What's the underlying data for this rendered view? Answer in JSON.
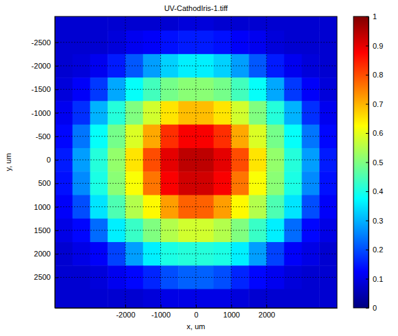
{
  "chart_data": {
    "type": "heatmap",
    "title": "UV-CathodIris-1.tiff",
    "xlabel": "x, um",
    "ylabel": "y, um",
    "x": [
      -3750,
      -3250,
      -2750,
      -2250,
      -1750,
      -1250,
      -750,
      -250,
      250,
      750,
      1250,
      1750,
      2250,
      2750,
      3250,
      3750
    ],
    "y": [
      -3000,
      -2500,
      -2000,
      -1500,
      -1000,
      -500,
      0,
      500,
      1000,
      1500,
      2000,
      2500,
      3000
    ],
    "values": [
      [
        0.08,
        0.08,
        0.08,
        0.08,
        0.08,
        0.08,
        0.08,
        0.09,
        0.09,
        0.08,
        0.08,
        0.08,
        0.08,
        0.08,
        0.08,
        0.08
      ],
      [
        0.08,
        0.08,
        0.08,
        0.09,
        0.11,
        0.12,
        0.14,
        0.15,
        0.15,
        0.14,
        0.12,
        0.11,
        0.09,
        0.08,
        0.08,
        0.08
      ],
      [
        0.08,
        0.09,
        0.11,
        0.15,
        0.21,
        0.28,
        0.33,
        0.36,
        0.36,
        0.33,
        0.28,
        0.21,
        0.15,
        0.11,
        0.09,
        0.08
      ],
      [
        0.09,
        0.12,
        0.18,
        0.29,
        0.38,
        0.44,
        0.49,
        0.51,
        0.51,
        0.49,
        0.44,
        0.38,
        0.29,
        0.18,
        0.12,
        0.09
      ],
      [
        0.11,
        0.17,
        0.3,
        0.41,
        0.5,
        0.58,
        0.65,
        0.69,
        0.69,
        0.65,
        0.58,
        0.5,
        0.41,
        0.3,
        0.17,
        0.11
      ],
      [
        0.13,
        0.24,
        0.38,
        0.49,
        0.59,
        0.71,
        0.83,
        0.88,
        0.88,
        0.83,
        0.71,
        0.59,
        0.49,
        0.38,
        0.24,
        0.13
      ],
      [
        0.15,
        0.28,
        0.41,
        0.52,
        0.65,
        0.8,
        0.9,
        0.94,
        0.94,
        0.9,
        0.8,
        0.65,
        0.52,
        0.41,
        0.28,
        0.15
      ],
      [
        0.14,
        0.26,
        0.4,
        0.51,
        0.62,
        0.76,
        0.88,
        0.92,
        0.92,
        0.88,
        0.76,
        0.62,
        0.51,
        0.4,
        0.26,
        0.14
      ],
      [
        0.12,
        0.2,
        0.35,
        0.45,
        0.55,
        0.63,
        0.72,
        0.78,
        0.78,
        0.72,
        0.63,
        0.55,
        0.45,
        0.35,
        0.2,
        0.12
      ],
      [
        0.1,
        0.13,
        0.23,
        0.36,
        0.43,
        0.5,
        0.55,
        0.58,
        0.58,
        0.55,
        0.5,
        0.43,
        0.36,
        0.23,
        0.13,
        0.1
      ],
      [
        0.08,
        0.1,
        0.12,
        0.19,
        0.28,
        0.36,
        0.4,
        0.41,
        0.41,
        0.4,
        0.36,
        0.28,
        0.19,
        0.12,
        0.1,
        0.08
      ],
      [
        0.08,
        0.08,
        0.09,
        0.11,
        0.13,
        0.16,
        0.2,
        0.22,
        0.22,
        0.2,
        0.16,
        0.13,
        0.11,
        0.09,
        0.08,
        0.08
      ],
      [
        0.08,
        0.08,
        0.08,
        0.08,
        0.08,
        0.09,
        0.1,
        0.1,
        0.1,
        0.1,
        0.09,
        0.08,
        0.08,
        0.08,
        0.08,
        0.08
      ]
    ],
    "xlim": [
      -4000,
      4000
    ],
    "ylim": [
      -3050,
      3150
    ],
    "xticks": [
      -2000,
      -1000,
      0,
      1000,
      2000
    ],
    "yticks": [
      -2500,
      -2000,
      -1500,
      -1000,
      -500,
      0,
      500,
      1000,
      1500,
      2000,
      2500
    ],
    "grid": true,
    "colorbar": {
      "lim": [
        0,
        1
      ],
      "ticks": [
        0,
        0.1,
        0.2,
        0.3,
        0.4,
        0.5,
        0.6,
        0.7,
        0.8,
        0.9,
        1
      ]
    }
  }
}
